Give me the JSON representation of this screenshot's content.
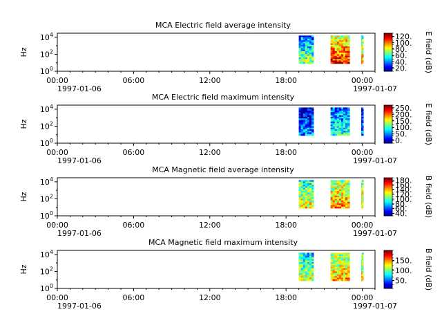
{
  "figure": {
    "x_time_ticks": [
      "00:00",
      "06:00",
      "12:00",
      "18:00",
      "00:00"
    ],
    "x_date_left": "1997-01-06",
    "x_date_right": "1997-01-07",
    "y_label": "Hz",
    "y_tick_base": "10",
    "y_tick_exponents": [
      "0",
      "2",
      "4"
    ]
  },
  "chart_data": [
    {
      "type": "heatmap",
      "title": "MCA  Electric field average intensity",
      "ylabel": "Hz",
      "y_scale": "log",
      "ylim": [
        1,
        30000
      ],
      "x_range": [
        "1997-01-06 00:00",
        "1997-01-07 01:00"
      ],
      "x_ticks": [
        "00:00",
        "06:00",
        "12:00",
        "18:00",
        "00:00"
      ],
      "colorbar": {
        "label": "E field (dB)",
        "ticks": [
          "20.",
          "40.",
          "60.",
          "80.",
          "100.",
          "120."
        ],
        "range": [
          10,
          130
        ]
      },
      "data_blocks": [
        {
          "start": "1997-01-06 19:00",
          "end": "1997-01-06 20:10",
          "intensity": "low-medium (blue-cyan-green)"
        },
        {
          "start": "1997-01-06 21:30",
          "end": "1997-01-06 23:00",
          "intensity": "high (green-yellow-red)"
        },
        {
          "start": "1997-01-06 23:55",
          "end": "1997-01-07 00:05",
          "intensity": "medium"
        }
      ]
    },
    {
      "type": "heatmap",
      "title": "MCA  Electric field maximum intensity",
      "ylabel": "Hz",
      "y_scale": "log",
      "ylim": [
        1,
        30000
      ],
      "x_range": [
        "1997-01-06 00:00",
        "1997-01-07 01:00"
      ],
      "x_ticks": [
        "00:00",
        "06:00",
        "12:00",
        "18:00",
        "00:00"
      ],
      "colorbar": {
        "label": "E field (dB)",
        "ticks": [
          "0.",
          "50.",
          "100.",
          "150.",
          "200.",
          "250."
        ],
        "range": [
          -20,
          270
        ]
      },
      "data_blocks": [
        {
          "start": "1997-01-06 19:00",
          "end": "1997-01-06 20:10",
          "intensity": "low (blue)"
        },
        {
          "start": "1997-01-06 21:30",
          "end": "1997-01-06 23:00",
          "intensity": "low-medium (blue-cyan)"
        },
        {
          "start": "1997-01-06 23:55",
          "end": "1997-01-07 00:05",
          "intensity": "low"
        }
      ]
    },
    {
      "type": "heatmap",
      "title": "MCA  Magnetic field average intensity",
      "ylabel": "Hz",
      "y_scale": "log",
      "ylim": [
        1,
        30000
      ],
      "x_range": [
        "1997-01-06 00:00",
        "1997-01-07 01:00"
      ],
      "x_ticks": [
        "00:00",
        "06:00",
        "12:00",
        "18:00",
        "00:00"
      ],
      "colorbar": {
        "label": "B field (dB)",
        "ticks": [
          "40.",
          "60.",
          "80.",
          "100.",
          "120.",
          "140.",
          "160.",
          "180."
        ],
        "range": [
          30,
          190
        ]
      },
      "data_blocks": [
        {
          "start": "1997-01-06 19:00",
          "end": "1997-01-06 20:10",
          "intensity": "medium (cyan-green)"
        },
        {
          "start": "1997-01-06 21:30",
          "end": "1997-01-06 23:00",
          "intensity": "medium-high (green-yellow)"
        },
        {
          "start": "1997-01-06 23:55",
          "end": "1997-01-07 00:05",
          "intensity": "medium"
        }
      ]
    },
    {
      "type": "heatmap",
      "title": "MCA  Magnetic field maximum intensity",
      "ylabel": "Hz",
      "y_scale": "log",
      "ylim": [
        1,
        30000
      ],
      "x_range": [
        "1997-01-06 00:00",
        "1997-01-07 01:00"
      ],
      "x_ticks": [
        "00:00",
        "06:00",
        "12:00",
        "18:00",
        "00:00"
      ],
      "colorbar": {
        "label": "B field (dB)",
        "ticks": [
          "50.",
          "100.",
          "150."
        ],
        "range": [
          10,
          200
        ]
      },
      "data_blocks": [
        {
          "start": "1997-01-06 19:00",
          "end": "1997-01-06 20:10",
          "intensity": "medium (cyan-green)"
        },
        {
          "start": "1997-01-06 21:30",
          "end": "1997-01-06 23:00",
          "intensity": "medium-high (green-yellow)"
        },
        {
          "start": "1997-01-06 23:55",
          "end": "1997-01-07 00:05",
          "intensity": "medium"
        }
      ]
    }
  ]
}
